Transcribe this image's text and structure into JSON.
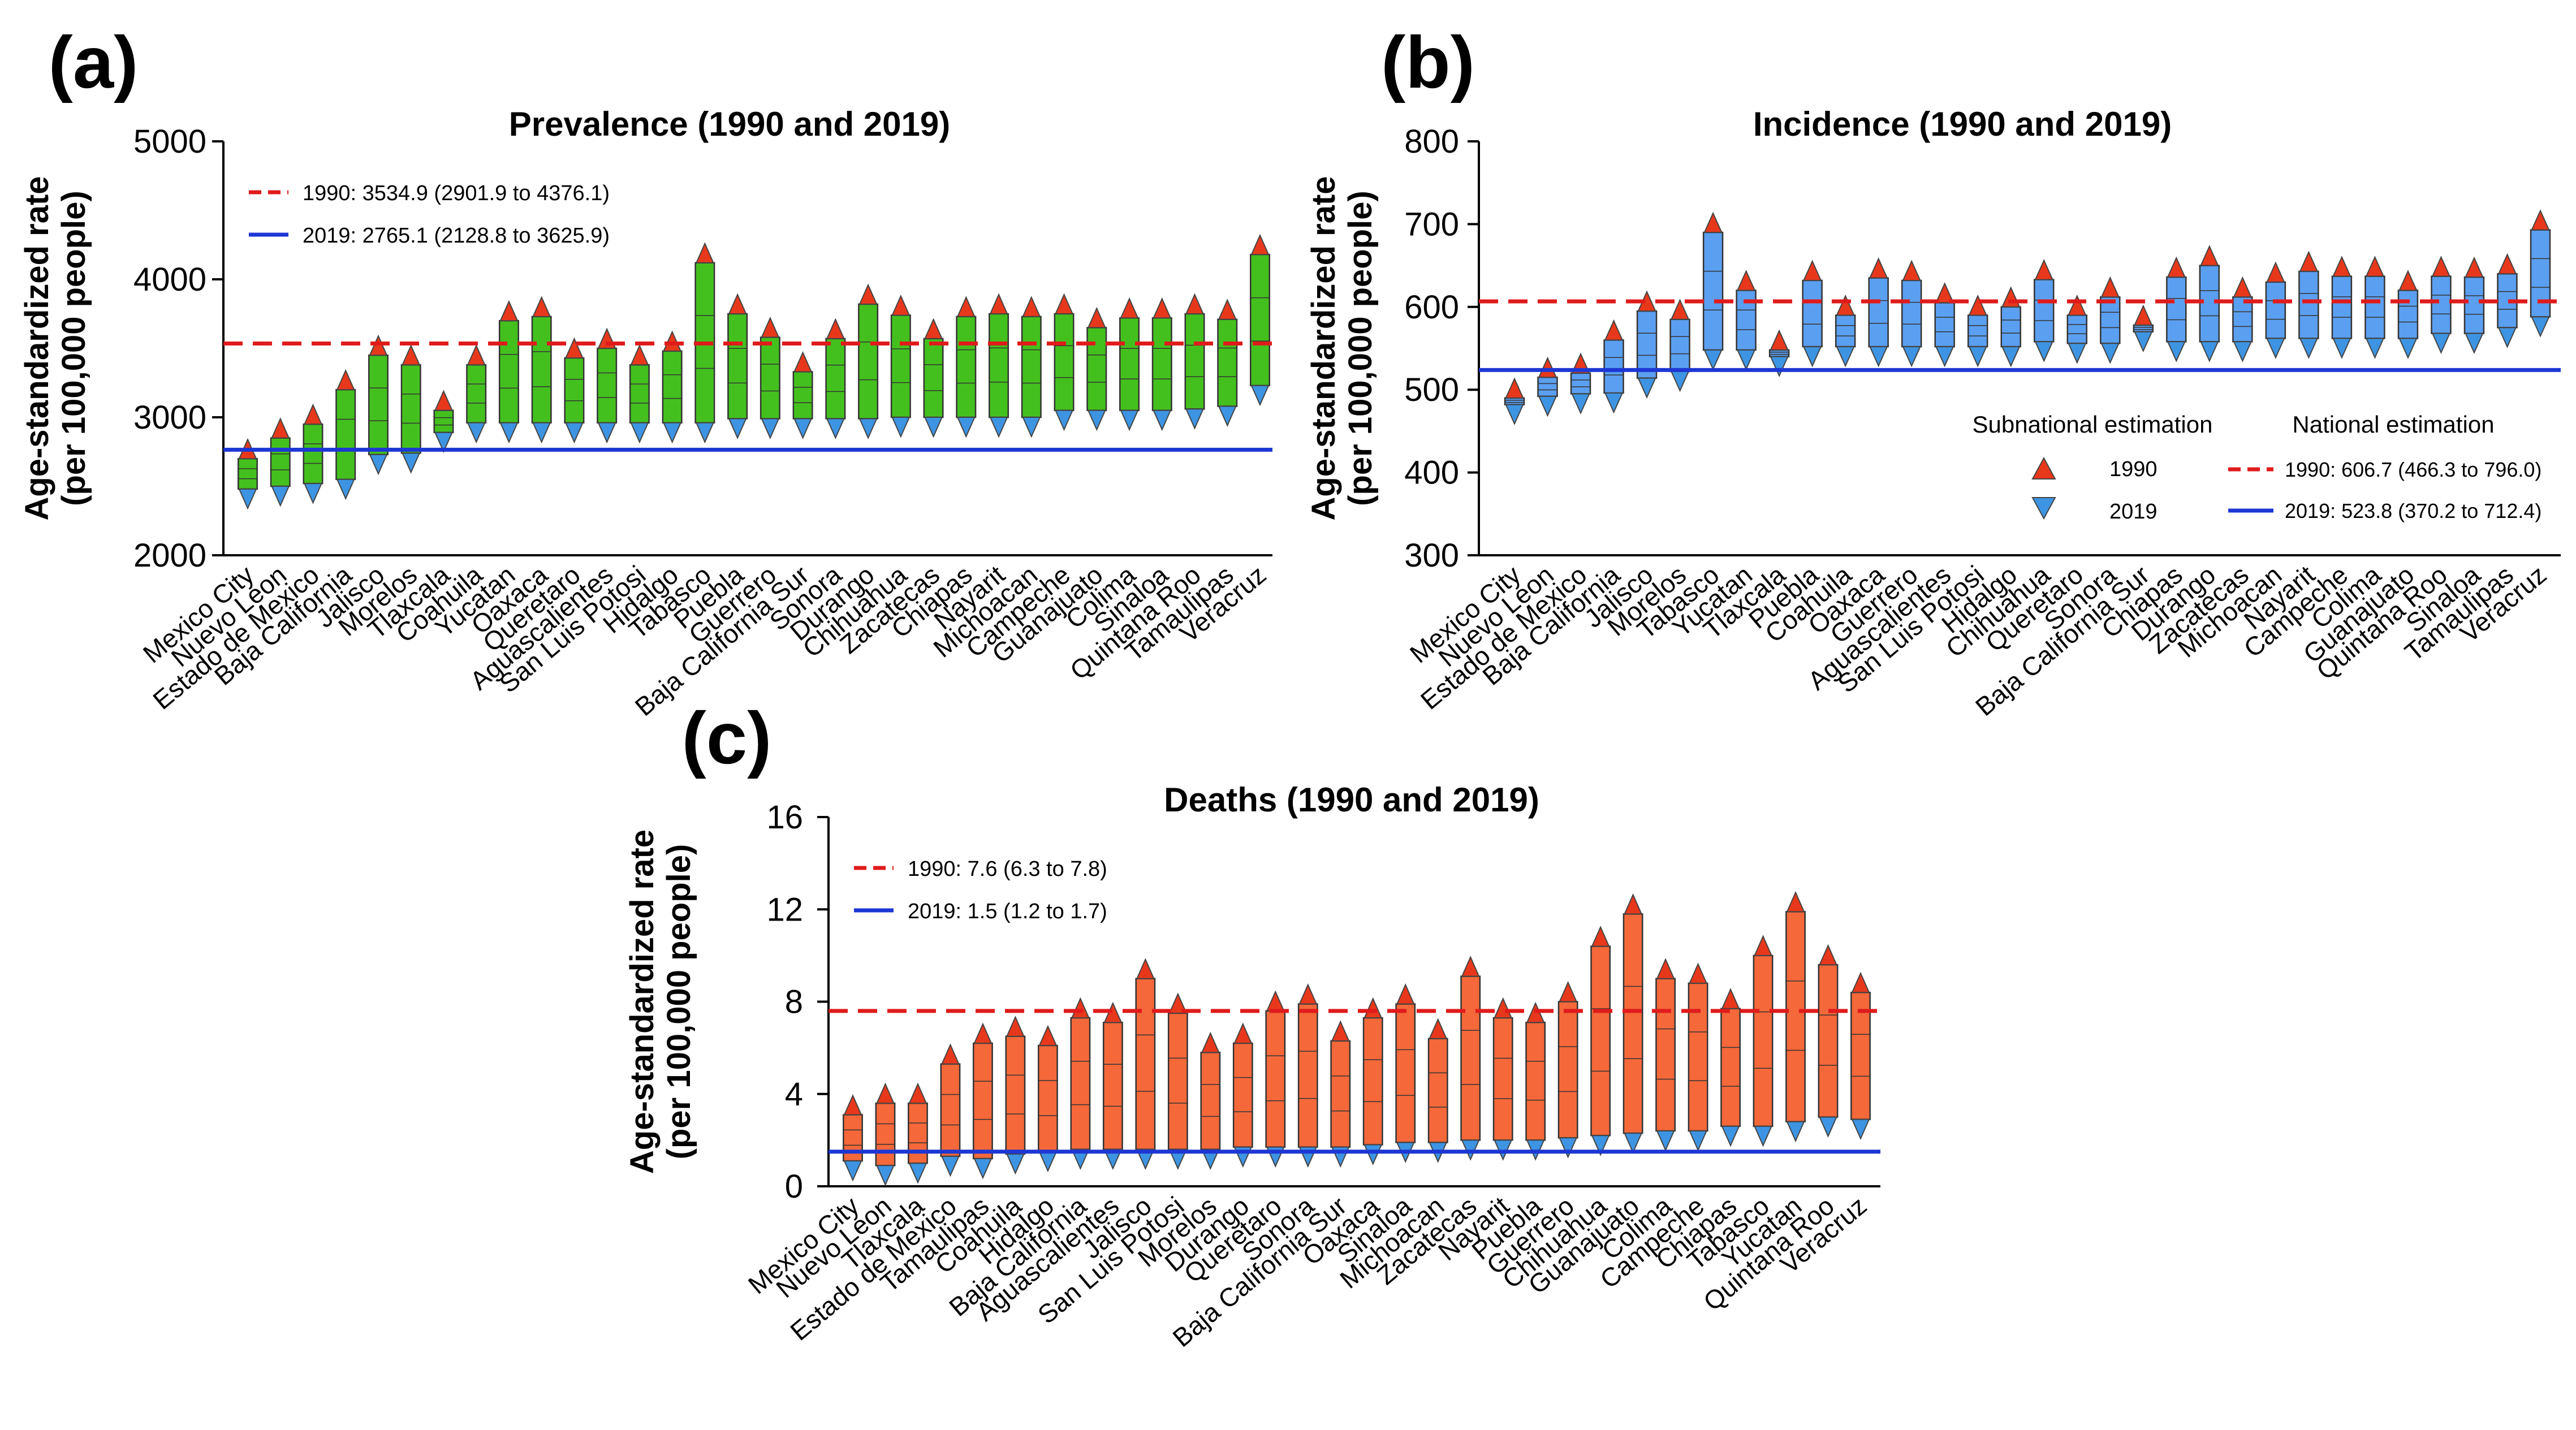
{
  "figure": {
    "colors": {
      "prevalence_bar": "#44c01e",
      "incidence_bar": "#5b9ff0",
      "deaths_bar": "#f4683a",
      "triangle_1990": "#e8381b",
      "triangle_2019": "#3d94e2",
      "national_1990_line": "#e01b1b",
      "national_2019_line": "#1d37d4"
    }
  },
  "chart_data": [
    {
      "id": "a",
      "panel_label": "(a)",
      "type": "bar",
      "title": "Prevalence (1990 and 2019)",
      "ylabel_line1": "Age-standardized rate",
      "ylabel_line2": "(per 100,000 people)",
      "ylim": [
        2000,
        5000
      ],
      "yticks": [
        2000,
        3000,
        4000,
        5000
      ],
      "categories": [
        "Mexico City",
        "Nuevo Leon",
        "Estado de Mexico",
        "Baja California",
        "Jalisco",
        "Morelos",
        "Tlaxcala",
        "Coahuila",
        "Yucatan",
        "Oaxaca",
        "Queretaro",
        "Aguascalientes",
        "San Luis Potosi",
        "Hidalgo",
        "Tabasco",
        "Puebla",
        "Guerrero",
        "Baja California Sur",
        "Sonora",
        "Durango",
        "Chihuahua",
        "Zacatecas",
        "Chiapas",
        "Nayarit",
        "Michoacan",
        "Campeche",
        "Guanajuato",
        "Colima",
        "Sinaloa",
        "Quintana Roo",
        "Tamaulipas",
        "Veracruz"
      ],
      "series": [
        {
          "name": "1990",
          "values": [
            2700,
            2850,
            2950,
            3200,
            3450,
            3380,
            3050,
            3380,
            3700,
            3730,
            3430,
            3500,
            3380,
            3480,
            4120,
            3750,
            3580,
            3330,
            3570,
            3820,
            3740,
            3570,
            3730,
            3750,
            3730,
            3750,
            3650,
            3720,
            3720,
            3750,
            3710,
            4180
          ]
        },
        {
          "name": "2019",
          "values": [
            2480,
            2500,
            2520,
            2550,
            2730,
            2740,
            2890,
            2960,
            2960,
            2960,
            2960,
            2960,
            2960,
            2960,
            2960,
            2990,
            2990,
            2990,
            2990,
            2990,
            3000,
            3000,
            3000,
            3000,
            3000,
            3050,
            3050,
            3050,
            3050,
            3060,
            3080,
            3230
          ]
        }
      ],
      "national": [
        {
          "label": "1990: 3534.9 (2901.9 to 4376.1)",
          "year": "1990",
          "value": 3534.9
        },
        {
          "label": "2019: 2765.1 (2128.8 to 3625.9)",
          "year": "2019",
          "value": 2765.1
        }
      ]
    },
    {
      "id": "b",
      "panel_label": "(b)",
      "type": "bar",
      "title": "Incidence (1990 and 2019)",
      "ylabel_line1": "Age-standardized rate",
      "ylabel_line2": "(per 100,000 people)",
      "ylim": [
        300,
        800
      ],
      "yticks": [
        300,
        400,
        500,
        600,
        700,
        800
      ],
      "categories": [
        "Mexico City",
        "Nuevo Leon",
        "Estado de Mexico",
        "Baja California",
        "Jalisco",
        "Morelos",
        "Tabasco",
        "Yucatan",
        "Tlaxcala",
        "Puebla",
        "Coahuila",
        "Oaxaca",
        "Guerrero",
        "Aguascalientes",
        "San Luis Potosi",
        "Hidalgo",
        "Chihuahua",
        "Queretaro",
        "Sonora",
        "Baja California Sur",
        "Chiapas",
        "Durango",
        "Zacatecas",
        "Michoacan",
        "Nayarit",
        "Campeche",
        "Colima",
        "Guanajuato",
        "Quintana Roo",
        "Sinaloa",
        "Tamaulipas",
        "Veracruz"
      ],
      "series": [
        {
          "name": "1990",
          "values": [
            490,
            515,
            520,
            560,
            595,
            585,
            690,
            620,
            548,
            632,
            590,
            635,
            632,
            605,
            590,
            600,
            633,
            590,
            612,
            578,
            636,
            650,
            612,
            630,
            643,
            637,
            637,
            620,
            637,
            636,
            640,
            693
          ]
        },
        {
          "name": "2019",
          "values": [
            482,
            492,
            495,
            496,
            514,
            522,
            548,
            548,
            540,
            552,
            552,
            552,
            552,
            552,
            552,
            552,
            558,
            556,
            556,
            570,
            558,
            558,
            558,
            562,
            562,
            562,
            562,
            562,
            568,
            568,
            575,
            588
          ]
        }
      ],
      "legend_headers": [
        "Subnational estimation",
        "National estimation"
      ],
      "national": [
        {
          "label": "1990: 606.7 (466.3 to 796.0)",
          "year": "1990",
          "value": 606.7
        },
        {
          "label": "2019: 523.8 (370.2 to 712.4)",
          "year": "2019",
          "value": 523.8
        }
      ]
    },
    {
      "id": "c",
      "panel_label": "(c)",
      "type": "bar",
      "title": "Deaths (1990 and 2019)",
      "ylabel_line1": "Age-standardized rate",
      "ylabel_line2": "(per 100,000 people)",
      "ylim": [
        0,
        16
      ],
      "yticks": [
        0,
        4,
        8,
        12,
        16
      ],
      "categories": [
        "Mexico City",
        "Nuevo Leon",
        "Tlaxcala",
        "Estado de Mexico",
        "Tamaulipas",
        "Coahuila",
        "Hidalgo",
        "Baja California",
        "Aguascalientes",
        "Jalisco",
        "San Luis Potosi",
        "Morelos",
        "Durango",
        "Queretaro",
        "Sonora",
        "Baja California Sur",
        "Oaxaca",
        "Sinaloa",
        "Michoacan",
        "Zacatecas",
        "Nayarit",
        "Puebla",
        "Guerrero",
        "Chihuahua",
        "Guanajuato",
        "Colima",
        "Campeche",
        "Chiapas",
        "Tabasco",
        "Yucatan",
        "Quintana Roo",
        "Veracruz"
      ],
      "series": [
        {
          "name": "1990",
          "values": [
            3.1,
            3.6,
            3.6,
            5.3,
            6.2,
            6.5,
            6.1,
            7.3,
            7.1,
            9.0,
            7.5,
            5.8,
            6.2,
            7.6,
            7.9,
            6.3,
            7.3,
            7.9,
            6.4,
            9.1,
            7.3,
            7.1,
            8.0,
            10.4,
            11.8,
            9.0,
            8.8,
            7.7,
            10.0,
            11.9,
            9.6,
            8.4
          ]
        },
        {
          "name": "2019",
          "values": [
            1.1,
            0.9,
            1.0,
            1.3,
            1.2,
            1.4,
            1.5,
            1.6,
            1.6,
            1.6,
            1.6,
            1.6,
            1.7,
            1.7,
            1.7,
            1.7,
            1.8,
            1.9,
            1.9,
            2.0,
            2.0,
            2.0,
            2.1,
            2.2,
            2.3,
            2.4,
            2.4,
            2.6,
            2.6,
            2.8,
            3.0,
            2.9
          ]
        }
      ],
      "national": [
        {
          "label": "1990: 7.6 (6.3 to 7.8)",
          "year": "1990",
          "value": 7.6
        },
        {
          "label": "2019: 1.5 (1.2 to 1.7)",
          "year": "2019",
          "value": 1.5
        }
      ]
    }
  ]
}
